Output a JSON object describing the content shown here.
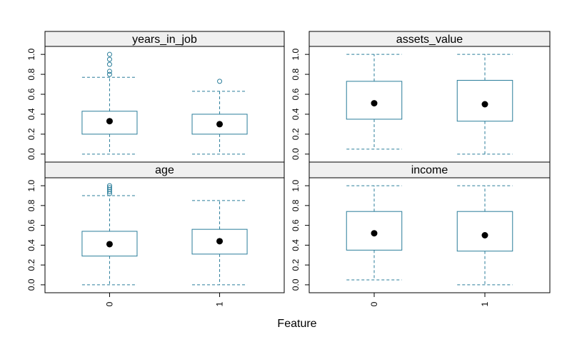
{
  "chart_data": {
    "type": "boxplot",
    "xlabel": "Feature",
    "categories": [
      "0",
      "1"
    ],
    "y_ticks": [
      "0.0",
      "0.2",
      "0.4",
      "0.6",
      "0.8",
      "1.0"
    ],
    "ylim": [
      -0.08,
      1.08
    ],
    "color": "#2a7d9a",
    "mean_color": "#000000",
    "strip_color": "#f0f0f0",
    "panels": [
      {
        "title": "years_in_job",
        "boxes": [
          {
            "category": "0",
            "whisker_low": 0.0,
            "q1": 0.2,
            "q3": 0.43,
            "whisker_high": 0.77,
            "mean": 0.33,
            "outliers": [
              0.8,
              0.83,
              0.9,
              0.95,
              1.0
            ]
          },
          {
            "category": "1",
            "whisker_low": 0.0,
            "q1": 0.2,
            "q3": 0.4,
            "whisker_high": 0.63,
            "mean": 0.3,
            "outliers": [
              0.73
            ]
          }
        ]
      },
      {
        "title": "assets_value",
        "boxes": [
          {
            "category": "0",
            "whisker_low": 0.05,
            "q1": 0.35,
            "q3": 0.73,
            "whisker_high": 1.0,
            "mean": 0.51,
            "outliers": []
          },
          {
            "category": "1",
            "whisker_low": 0.0,
            "q1": 0.33,
            "q3": 0.74,
            "whisker_high": 1.0,
            "mean": 0.5,
            "outliers": []
          }
        ]
      },
      {
        "title": "age",
        "boxes": [
          {
            "category": "0",
            "whisker_low": 0.0,
            "q1": 0.29,
            "q3": 0.54,
            "whisker_high": 0.9,
            "mean": 0.41,
            "outliers": [
              0.92,
              0.94,
              0.96,
              0.98,
              1.0
            ]
          },
          {
            "category": "1",
            "whisker_low": 0.0,
            "q1": 0.31,
            "q3": 0.56,
            "whisker_high": 0.85,
            "mean": 0.44,
            "outliers": []
          }
        ]
      },
      {
        "title": "income",
        "boxes": [
          {
            "category": "0",
            "whisker_low": 0.05,
            "q1": 0.35,
            "q3": 0.74,
            "whisker_high": 1.0,
            "mean": 0.52,
            "outliers": []
          },
          {
            "category": "1",
            "whisker_low": 0.0,
            "q1": 0.34,
            "q3": 0.74,
            "whisker_high": 1.0,
            "mean": 0.5,
            "outliers": []
          }
        ]
      }
    ]
  }
}
